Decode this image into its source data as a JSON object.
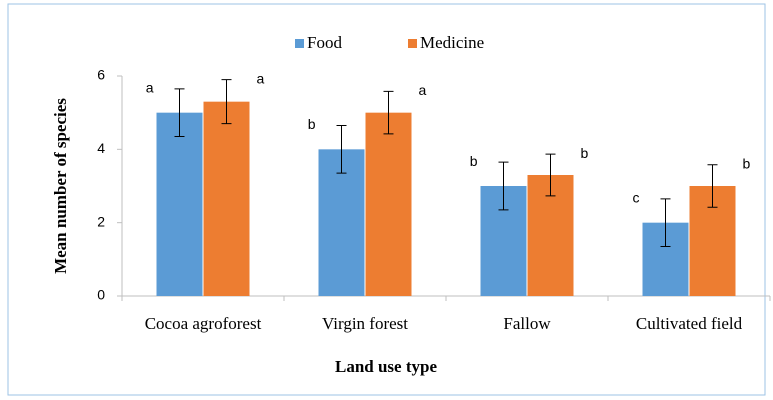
{
  "chart_data": {
    "type": "bar",
    "y_label": "Mean number of species",
    "x_label": "Land use type",
    "categories": [
      "Cocoa agroforest",
      "Virgin forest",
      "Fallow",
      "Cultivated field"
    ],
    "series": [
      {
        "name": "Food",
        "color": "#5b9bd5",
        "values": [
          5,
          4,
          3,
          2
        ],
        "errors": [
          0.65,
          0.65,
          0.65,
          0.65
        ],
        "letters": [
          "a",
          "b",
          "b",
          "c"
        ]
      },
      {
        "name": "Medicine",
        "color": "#ed7d31",
        "values": [
          5.3,
          5,
          3.3,
          3
        ],
        "errors": [
          0.6,
          0.58,
          0.57,
          0.58
        ],
        "letters": [
          "a",
          "a",
          "b",
          "b"
        ]
      }
    ],
    "ylim": [
      0,
      6
    ],
    "yticks": [
      0,
      2,
      4,
      6
    ],
    "grid": false,
    "legend": "top"
  }
}
